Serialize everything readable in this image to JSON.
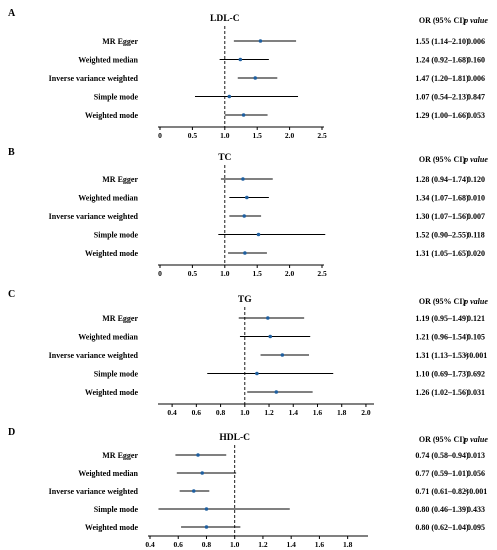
{
  "headers": {
    "or": "OR (95% CI)",
    "p": "p value"
  },
  "chart_data": [
    {
      "type": "forest",
      "panel": "A",
      "title": "LDL-C",
      "ref_line": 1.0,
      "xlim": [
        0,
        2.5
      ],
      "ticks": [
        "0",
        "0.5",
        "1.0",
        "1.5",
        "2.0",
        "2.5"
      ],
      "rows": [
        {
          "method": "MR Egger",
          "or": 1.55,
          "lo": 1.14,
          "hi": 2.1,
          "or_text": "1.55 (1.14–2.10)",
          "p": "0.006"
        },
        {
          "method": "Weighted median",
          "or": 1.24,
          "lo": 0.92,
          "hi": 1.68,
          "or_text": "1.24 (0.92–1.68)",
          "p": "0.160"
        },
        {
          "method": "Inverse variance weighted",
          "or": 1.47,
          "lo": 1.2,
          "hi": 1.81,
          "or_text": "1.47 (1.20–1.81)",
          "p": "0.006"
        },
        {
          "method": "Simple mode",
          "or": 1.07,
          "lo": 0.54,
          "hi": 2.13,
          "or_text": "1.07 (0.54–2.13)",
          "p": "0.847"
        },
        {
          "method": "Weighted mode",
          "or": 1.29,
          "lo": 1.0,
          "hi": 1.66,
          "or_text": "1.29 (1.00–1.66)",
          "p": "0.053"
        }
      ]
    },
    {
      "type": "forest",
      "panel": "B",
      "title": "TC",
      "ref_line": 1.0,
      "xlim": [
        0,
        2.5
      ],
      "ticks": [
        "0",
        "0.5",
        "1.0",
        "1.5",
        "2.0",
        "2.5"
      ],
      "rows": [
        {
          "method": "MR Egger",
          "or": 1.28,
          "lo": 0.94,
          "hi": 1.74,
          "or_text": "1.28 (0.94–1.74)",
          "p": "0.120"
        },
        {
          "method": "Weighted median",
          "or": 1.34,
          "lo": 1.07,
          "hi": 1.68,
          "or_text": "1.34 (1.07–1.68)",
          "p": "0.010"
        },
        {
          "method": "Inverse variance weighted",
          "or": 1.3,
          "lo": 1.07,
          "hi": 1.56,
          "or_text": "1.30 (1.07–1.56)",
          "p": "0.007"
        },
        {
          "method": "Simple mode",
          "or": 1.52,
          "lo": 0.9,
          "hi": 2.55,
          "or_text": "1.52 (0.90–2.55)",
          "p": "0.118"
        },
        {
          "method": "Weighted mode",
          "or": 1.31,
          "lo": 1.05,
          "hi": 1.65,
          "or_text": "1.31 (1.05–1.65)",
          "p": "0.020"
        }
      ]
    },
    {
      "type": "forest",
      "panel": "C",
      "title": "TG",
      "ref_line": 1.0,
      "xlim": [
        0.3,
        2.05
      ],
      "ticks": [
        "0.4",
        "0.6",
        "0.8",
        "1.0",
        "1.2",
        "1.4",
        "1.6",
        "1.8",
        "2.0"
      ],
      "rows": [
        {
          "method": "MR Egger",
          "or": 1.19,
          "lo": 0.95,
          "hi": 1.49,
          "or_text": "1.19 (0.95–1.49)",
          "p": "0.121"
        },
        {
          "method": "Weighted median",
          "or": 1.21,
          "lo": 0.96,
          "hi": 1.54,
          "or_text": "1.21 (0.96–1.54)",
          "p": "0.105"
        },
        {
          "method": "Inverse variance weighted",
          "or": 1.31,
          "lo": 1.13,
          "hi": 1.53,
          "or_text": "1.31 (1.13–1.53)",
          "p": "<0.001"
        },
        {
          "method": "Simple mode",
          "or": 1.1,
          "lo": 0.69,
          "hi": 1.73,
          "or_text": "1.10 (0.69–1.73)",
          "p": "0.692"
        },
        {
          "method": "Weighted mode",
          "or": 1.26,
          "lo": 1.02,
          "hi": 1.56,
          "or_text": "1.26 (1.02–1.56)",
          "p": "0.031"
        }
      ]
    },
    {
      "type": "forest",
      "panel": "D",
      "title": "HDL-C",
      "ref_line": 1.0,
      "xlim": [
        0.4,
        1.93
      ],
      "ticks": [
        "0.4",
        "0.6",
        "0.8",
        "1.0",
        "1.2",
        "1.4",
        "1.6",
        "1.8"
      ],
      "rows": [
        {
          "method": "MR Egger",
          "or": 0.74,
          "lo": 0.58,
          "hi": 0.94,
          "or_text": "0.74 (0.58–0.94)",
          "p": "0.013"
        },
        {
          "method": "Weighted median",
          "or": 0.77,
          "lo": 0.59,
          "hi": 1.01,
          "or_text": "0.77 (0.59–1.01)",
          "p": "0.056"
        },
        {
          "method": "Inverse variance weighted",
          "or": 0.71,
          "lo": 0.61,
          "hi": 0.82,
          "or_text": "0.71 (0.61–0.82)",
          "p": "<0.001"
        },
        {
          "method": "Simple mode",
          "or": 0.8,
          "lo": 0.46,
          "hi": 1.39,
          "or_text": "0.80 (0.46–1.39)",
          "p": "0.433"
        },
        {
          "method": "Weighted mode",
          "or": 0.8,
          "lo": 0.62,
          "hi": 1.04,
          "or_text": "0.80 (0.62–1.04)",
          "p": "0.095"
        }
      ]
    }
  ]
}
